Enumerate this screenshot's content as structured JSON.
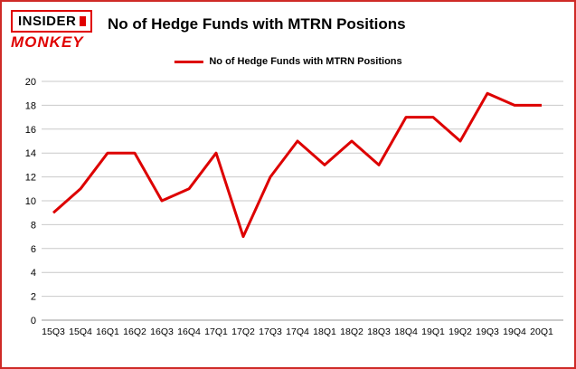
{
  "logo": {
    "line1": "INSIDER",
    "line2": "MONKEY"
  },
  "title": "No of Hedge Funds with MTRN Positions",
  "legend": "No of Hedge Funds with MTRN Positions",
  "colors": {
    "line": "#dd0000",
    "frame_border": "#cf2a27",
    "grid": "#c9c9c9",
    "zero_line": "#9a9a9a",
    "text": "#000000",
    "logo_red": "#e00000"
  },
  "chart_data": {
    "type": "line",
    "title": "No of Hedge Funds with MTRN Positions",
    "categories": [
      "15Q3",
      "15Q4",
      "16Q1",
      "16Q2",
      "16Q3",
      "16Q4",
      "17Q1",
      "17Q2",
      "17Q3",
      "17Q4",
      "18Q1",
      "18Q2",
      "18Q3",
      "18Q4",
      "19Q1",
      "19Q2",
      "19Q3",
      "19Q4",
      "20Q1"
    ],
    "values": [
      9,
      11,
      14,
      14,
      10,
      11,
      14,
      7,
      12,
      15,
      13,
      15,
      13,
      17,
      17,
      15,
      19,
      18,
      18
    ],
    "xlabel": "",
    "ylabel": "",
    "ylim": [
      0,
      20
    ],
    "yticks": [
      0,
      2,
      4,
      6,
      8,
      10,
      12,
      14,
      16,
      18,
      20
    ],
    "grid": true,
    "legend_position": "top",
    "series_name": "No of Hedge Funds with MTRN Positions"
  }
}
